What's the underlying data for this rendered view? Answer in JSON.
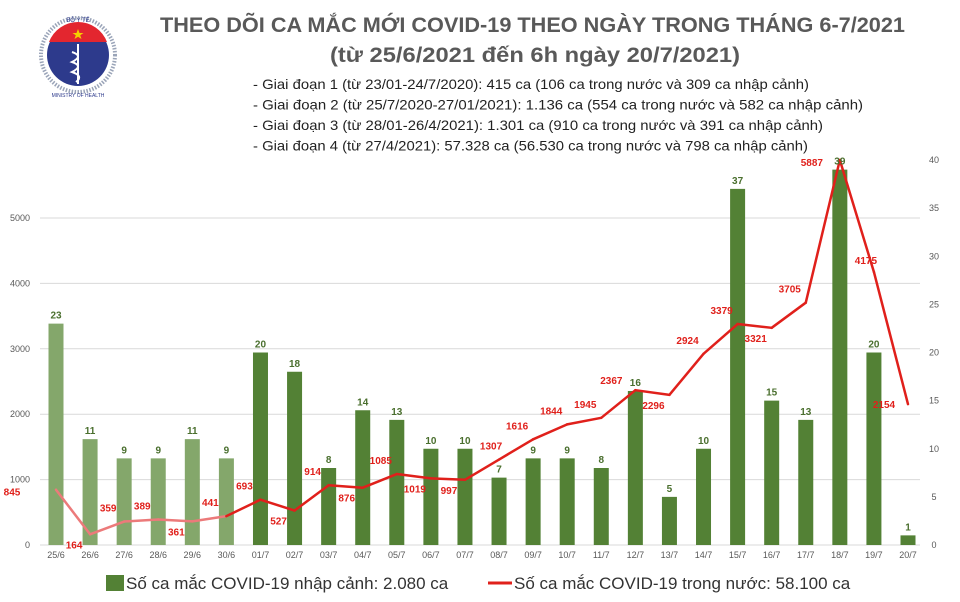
{
  "header": {
    "logo_text_top": "BỘ Y TẾ",
    "logo_text_bottom": "MINISTRY OF HEALTH",
    "title_line1": "THEO DÕI CA MẮC MỚI COVID-19 THEO NGÀY TRONG THÁNG 6-7/2021",
    "title_line2": "(từ 25/6/2021 đến 6h ngày 20/7/2021)",
    "stages": [
      "- Giai đoạn 1 (từ 23/01-24/7/2020): 415 ca (106 ca trong nước và 309 ca nhập cảnh)",
      "- Giai đoạn 2 (từ 25/7/2020-27/01/2021): 1.136 ca (554 ca trong nước và 582 ca nhập cảnh)",
      "- Giai đoạn 3 (từ 28/01-26/4/2021): 1.301 ca (910 ca trong nước và 391 ca nhập cảnh)",
      "- Giai đoạn 4 (từ 27/4/2021): 57.328 ca (56.530 ca trong nước và 798 ca nhập cảnh)"
    ]
  },
  "chart_data": {
    "type": "bar+line",
    "categories": [
      "25/6",
      "26/6",
      "27/6",
      "28/6",
      "29/6",
      "30/6",
      "01/7",
      "02/7",
      "03/7",
      "04/7",
      "05/7",
      "06/7",
      "07/7",
      "08/7",
      "09/7",
      "10/7",
      "11/7",
      "12/7",
      "13/7",
      "14/7",
      "15/7",
      "16/7",
      "17/7",
      "18/7",
      "19/7",
      "20/7"
    ],
    "series": [
      {
        "name": "Số ca mắc COVID-19 nhập cảnh: 2.080 ca",
        "type": "bar",
        "axis": "right",
        "color": "#538135",
        "faded_color": "#84a76b",
        "values": [
          23,
          11,
          9,
          9,
          11,
          9,
          20,
          18,
          8,
          14,
          13,
          10,
          10,
          7,
          9,
          9,
          8,
          16,
          5,
          10,
          37,
          15,
          13,
          39,
          20,
          1
        ]
      },
      {
        "name": "Số ca mắc COVID-19 trong nước: 58.100 ca",
        "type": "line",
        "axis": "left",
        "color": "#e0201b",
        "faded_color": "#ec7a7a",
        "values": [
          845,
          164,
          359,
          389,
          361,
          441,
          693,
          527,
          914,
          876,
          1085,
          1019,
          997,
          1307,
          1616,
          1844,
          1945,
          2367,
          2296,
          2924,
          3379,
          3321,
          3705,
          5887,
          4175,
          2154
        ]
      }
    ],
    "faded_count": 6,
    "y_left": {
      "range": [
        0,
        5000
      ],
      "ticks": [
        "0",
        "1000",
        "2000",
        "3000",
        "4000",
        "5000"
      ]
    },
    "y_right": {
      "range": [
        0,
        40
      ],
      "ticks": [
        "0",
        "5",
        "10",
        "15",
        "20",
        "25",
        "30",
        "35",
        "40"
      ]
    },
    "grid": true,
    "legend": "bottom"
  }
}
